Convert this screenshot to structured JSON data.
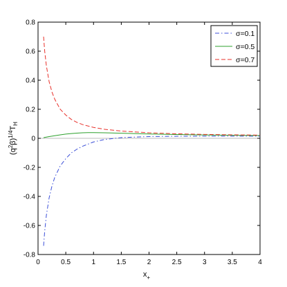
{
  "chart_data": {
    "type": "line",
    "xlabel_main": "x",
    "xlabel_sub": "+",
    "ylabel_a": "(q",
    "ylabel_sup1": "2",
    "ylabel_b": "β)",
    "ylabel_sup2": "1/4",
    "ylabel_c": "T",
    "ylabel_sub": "H",
    "xlim": [
      0,
      4
    ],
    "ylim": [
      -0.8,
      0.8
    ],
    "xticks": [
      "0",
      "0.5",
      "1",
      "1.5",
      "2",
      "2.5",
      "3",
      "3.5",
      "4"
    ],
    "yticks": [
      "-0.8",
      "-0.6",
      "-0.4",
      "-0.2",
      "0",
      "0.2",
      "0.4",
      "0.6",
      "0.8"
    ],
    "legend_position": "top-right",
    "series": [
      {
        "name": "σ=0.1",
        "color": "#3b4fd8",
        "dash": "dashdot",
        "x": [
          0.1,
          0.12,
          0.15,
          0.2,
          0.25,
          0.3,
          0.4,
          0.5,
          0.6,
          0.7,
          0.8,
          1.0,
          1.2,
          1.5,
          2.0,
          2.5,
          3.0,
          3.5,
          4.0
        ],
        "y": [
          -0.74,
          -0.64,
          -0.53,
          -0.41,
          -0.33,
          -0.27,
          -0.19,
          -0.14,
          -0.1,
          -0.075,
          -0.055,
          -0.025,
          -0.008,
          0.005,
          0.012,
          0.014,
          0.015,
          0.015,
          0.015
        ]
      },
      {
        "name": "σ=0.5",
        "color": "#2ca02c",
        "dash": "solid",
        "x": [
          0.1,
          0.2,
          0.3,
          0.4,
          0.5,
          0.6,
          0.7,
          0.8,
          0.9,
          1.0,
          1.2,
          1.5,
          2.0,
          2.5,
          3.0,
          3.5,
          4.0
        ],
        "y": [
          0.005,
          0.012,
          0.018,
          0.024,
          0.029,
          0.033,
          0.036,
          0.038,
          0.039,
          0.039,
          0.038,
          0.035,
          0.03,
          0.026,
          0.023,
          0.021,
          0.019
        ]
      },
      {
        "name": "σ=0.7",
        "color": "#e8302a",
        "dash": "dashed",
        "x": [
          0.1,
          0.12,
          0.15,
          0.2,
          0.25,
          0.3,
          0.4,
          0.5,
          0.6,
          0.7,
          0.8,
          1.0,
          1.2,
          1.5,
          2.0,
          2.5,
          3.0,
          3.5,
          4.0
        ],
        "y": [
          0.7,
          0.6,
          0.5,
          0.39,
          0.32,
          0.27,
          0.2,
          0.16,
          0.13,
          0.11,
          0.095,
          0.075,
          0.062,
          0.05,
          0.038,
          0.031,
          0.027,
          0.024,
          0.022
        ]
      }
    ]
  }
}
